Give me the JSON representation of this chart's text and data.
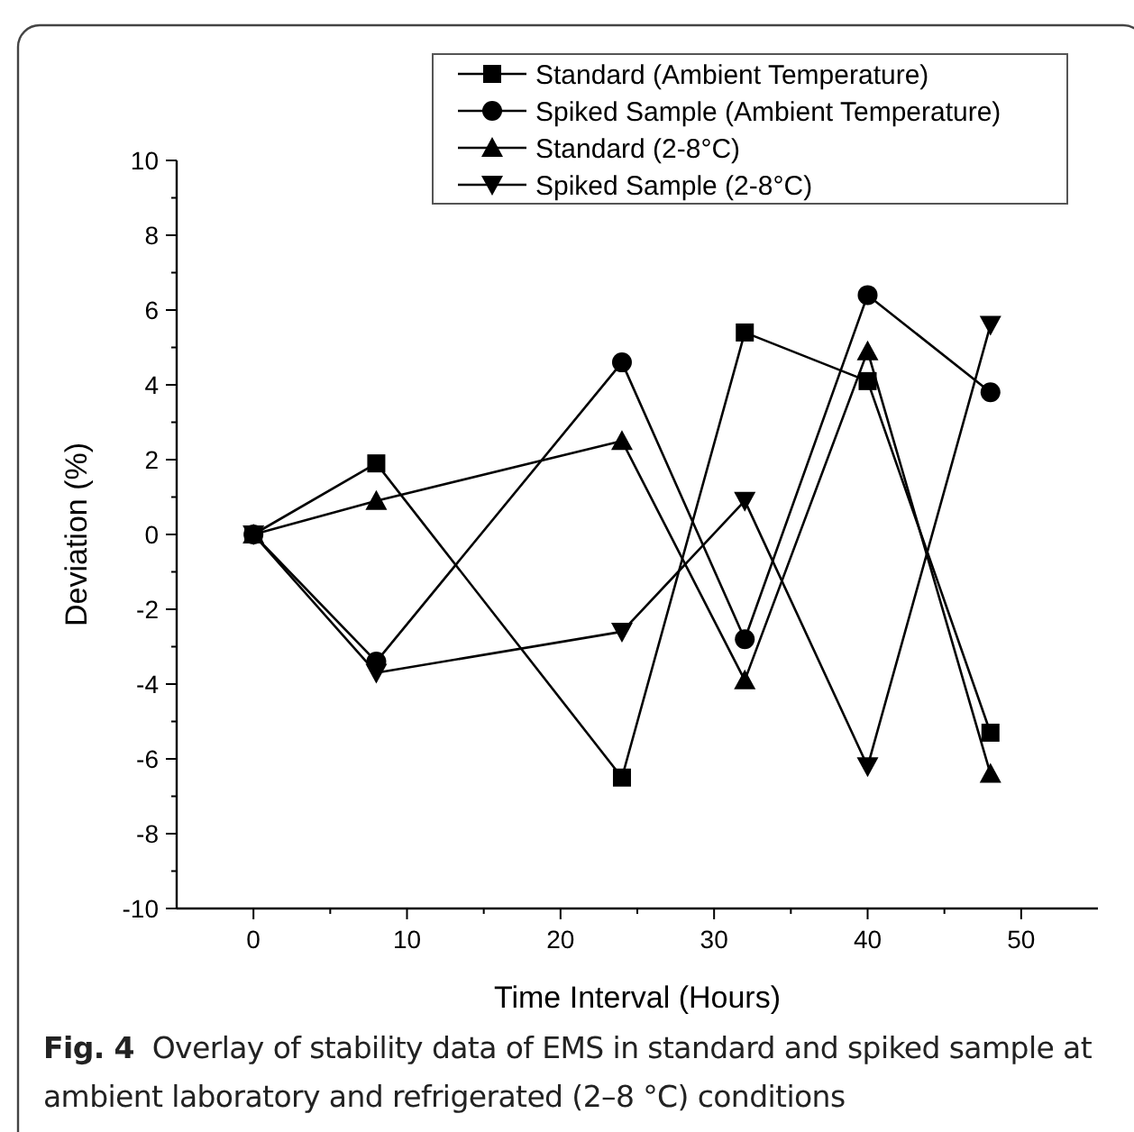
{
  "chart_data": {
    "type": "line",
    "xlabel": "Time Interval (Hours)",
    "ylabel": "Deviation (%)",
    "annotations": [
      "Fig. 4  Overlay of stability data of EMS in standard and spiked sample at ambient laboratory and refrigerated (2–8 °C) conditions"
    ],
    "x": [
      0,
      8,
      24,
      32,
      40,
      48
    ],
    "xlim": [
      -5,
      55
    ],
    "xticks": [
      0,
      10,
      20,
      30,
      40,
      50
    ],
    "ylim": [
      -10,
      10
    ],
    "yticks": [
      -10,
      -8,
      -6,
      -4,
      -2,
      0,
      2,
      4,
      6,
      8,
      10
    ],
    "grid": false,
    "legend": "top right",
    "series": [
      {
        "name": "Standard (Ambient Temperature)",
        "color": "#000000",
        "marker": "square",
        "values": [
          0,
          1.9,
          -6.5,
          5.4,
          4.1,
          -5.3
        ]
      },
      {
        "name": "Spiked Sample (Ambient Temperature)",
        "color": "#000000",
        "marker": "circle",
        "values": [
          0,
          -3.4,
          4.6,
          -2.8,
          6.4,
          3.8
        ]
      },
      {
        "name": "Standard (2-8°C)",
        "color": "#000000",
        "marker": "triangle",
        "values": [
          0,
          0.9,
          2.5,
          -3.9,
          4.9,
          -6.4
        ]
      },
      {
        "name": "Spiked Sample (2-8°C)",
        "color": "#000000",
        "marker": "triangle-down",
        "values": [
          0,
          -3.7,
          -2.6,
          0.9,
          -6.2,
          5.6
        ]
      }
    ]
  }
}
